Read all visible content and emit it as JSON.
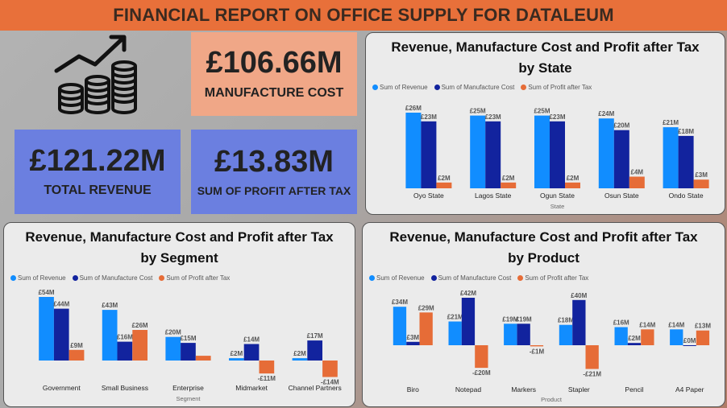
{
  "header": {
    "title": "FINANCIAL REPORT ON OFFICE SUPPLY FOR DATALEUM"
  },
  "icons": {
    "growth": "growth-chart-coins-icon"
  },
  "colors": {
    "header": "#e8703a",
    "revenue": "#118dff",
    "manufacture": "#12239e",
    "profit": "#e66c37",
    "kpi_orange": "#f0a787",
    "kpi_blue": "#6b7fe0"
  },
  "kpis": {
    "manufacture_cost": {
      "value": "£106.66M",
      "label": "MANUFACTURE COST"
    },
    "total_revenue": {
      "value": "£121.22M",
      "label": "TOTAL REVENUE"
    },
    "profit_after_tax": {
      "value": "£13.83M",
      "label": "SUM OF PROFIT AFTER TAX"
    }
  },
  "legend": [
    "Sum of Revenue",
    "Sum of Manufacture Cost",
    "Sum of Profit after Tax"
  ],
  "chart_data": [
    {
      "type": "bar",
      "title_line1": "Revenue, Manufacture Cost and Profit after Tax",
      "title_line2": "by State",
      "xlabel": "State",
      "categories": [
        "Oyo State",
        "Lagos State",
        "Ogun State",
        "Osun State",
        "Ondo State"
      ],
      "series": [
        {
          "name": "Sum of Revenue",
          "values": [
            26,
            25,
            25,
            24,
            21
          ],
          "labels": [
            "£26M",
            "£25M",
            "£25M",
            "£24M",
            "£21M"
          ]
        },
        {
          "name": "Sum of Manufacture Cost",
          "values": [
            23,
            23,
            23,
            20,
            18
          ],
          "labels": [
            "£23M",
            "£23M",
            "£23M",
            "£20M",
            "£18M"
          ]
        },
        {
          "name": "Sum of Profit after Tax",
          "values": [
            2,
            2,
            2,
            4,
            3
          ],
          "labels": [
            "£2M",
            "£2M",
            "£2M",
            "£4M",
            "£3M"
          ]
        }
      ],
      "ylim": [
        0,
        26
      ]
    },
    {
      "type": "bar",
      "title_line1": "Revenue, Manufacture Cost and Profit after Tax",
      "title_line2": "by Segment",
      "xlabel": "Segment",
      "categories": [
        "Government",
        "Small Business",
        "Enterprise",
        "Midmarket",
        "Channel Partners"
      ],
      "series": [
        {
          "name": "Sum of Revenue",
          "values": [
            54,
            43,
            20,
            2,
            2
          ],
          "labels": [
            "£54M",
            "£43M",
            "£20M",
            "£2M",
            "£2M"
          ]
        },
        {
          "name": "Sum of Manufacture Cost",
          "values": [
            44,
            16,
            15,
            14,
            17
          ],
          "labels": [
            "£44M",
            "£16M",
            "£15M",
            "£14M",
            "£17M"
          ]
        },
        {
          "name": "Sum of Profit after Tax",
          "values": [
            9,
            26,
            4,
            -11,
            -14
          ],
          "labels": [
            "£9M",
            "£26M",
            "",
            "-£11M",
            "-£14M"
          ]
        }
      ],
      "ylim": [
        -15,
        54
      ]
    },
    {
      "type": "bar",
      "title_line1": "Revenue, Manufacture Cost and Profit after Tax",
      "title_line2": "by Product",
      "xlabel": "Product",
      "categories": [
        "Biro",
        "Notepad",
        "Markers",
        "Stapler",
        "Pencil",
        "A4 Paper"
      ],
      "series": [
        {
          "name": "Sum of Revenue",
          "values": [
            34,
            21,
            19,
            18,
            16,
            14
          ],
          "labels": [
            "£34M",
            "£21M",
            "£19M",
            "£18M",
            "£16M",
            "£14M"
          ]
        },
        {
          "name": "Sum of Manufacture Cost",
          "values": [
            3,
            42,
            19,
            40,
            2,
            0
          ],
          "labels": [
            "£3M",
            "£42M",
            "£19M",
            "£40M",
            "£2M",
            "£0M"
          ]
        },
        {
          "name": "Sum of Profit after Tax",
          "values": [
            29,
            -20,
            -1,
            -21,
            14,
            13
          ],
          "labels": [
            "£29M",
            "-£20M",
            "-£1M",
            "-£21M",
            "£14M",
            "£13M"
          ]
        }
      ],
      "ylim": [
        -22,
        42
      ]
    }
  ]
}
